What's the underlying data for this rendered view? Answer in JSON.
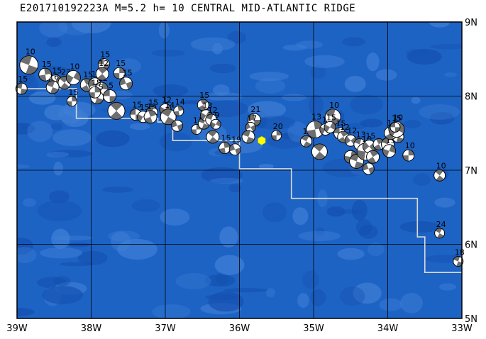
{
  "title": "E201710192223A M=5.2 h= 10 CENTRAL MID-ATLANTIC RIDGE",
  "map": {
    "lon_range": [
      -39,
      -33
    ],
    "lat_range": [
      5,
      9
    ],
    "x_ticks": [
      "39W",
      "38W",
      "37W",
      "36W",
      "35W",
      "34W",
      "33W"
    ],
    "y_ticks": [
      "5N",
      "6N",
      "7N",
      "8N",
      "9N"
    ],
    "colors": {
      "ocean": "#1d63c4",
      "ocean_light": "#3f7fd6",
      "ocean_dark": "#1450b0",
      "grid": "#000000",
      "fault": "#d9d9d9",
      "event_star": "#ffff00",
      "beach_dark": "#6e6e6e",
      "beach_light": "#ffffff"
    },
    "event": {
      "lon": -35.7,
      "lat": 7.4
    },
    "boundary": [
      [
        -39,
        8.1
      ],
      [
        -38.2,
        8.1
      ],
      [
        -38.2,
        7.7
      ],
      [
        -37.1,
        7.7
      ],
      [
        -37.1,
        7.65
      ],
      [
        -36.9,
        7.65
      ],
      [
        -36.9,
        7.4
      ],
      [
        -36.0,
        7.4
      ],
      [
        -36.0,
        7.02
      ],
      [
        -35.3,
        7.02
      ],
      [
        -35.3,
        6.62
      ],
      [
        -33.6,
        6.62
      ],
      [
        -33.6,
        6.1
      ],
      [
        -33.5,
        6.1
      ],
      [
        -33.5,
        5.62
      ],
      [
        -33.0,
        5.62
      ]
    ],
    "mechanisms": [
      {
        "lon": -38.84,
        "lat": 8.42,
        "r": 13,
        "rot": 20,
        "label": "10"
      },
      {
        "lon": -38.62,
        "lat": 8.29,
        "r": 9,
        "rot": 80,
        "label": "15"
      },
      {
        "lon": -38.48,
        "lat": 8.2,
        "r": 9,
        "rot": 120,
        "label": "15"
      },
      {
        "lon": -38.36,
        "lat": 8.18,
        "r": 9,
        "rot": 40,
        "label": "23"
      },
      {
        "lon": -38.52,
        "lat": 8.12,
        "r": 9,
        "rot": 200,
        "label": "16"
      },
      {
        "lon": -38.94,
        "lat": 8.1,
        "r": 8,
        "rot": 10,
        "label": "15"
      },
      {
        "lon": -38.24,
        "lat": 8.25,
        "r": 10,
        "rot": 300,
        "label": "10"
      },
      {
        "lon": -38.06,
        "lat": 8.15,
        "r": 9,
        "rot": 60,
        "label": "15"
      },
      {
        "lon": -37.95,
        "lat": 8.16,
        "r": 9,
        "rot": 150,
        "label": "15"
      },
      {
        "lon": -37.86,
        "lat": 8.1,
        "r": 9,
        "rot": 100,
        "label": "12"
      },
      {
        "lon": -37.83,
        "lat": 8.43,
        "r": 8,
        "rot": 0,
        "label": "15"
      },
      {
        "lon": -37.85,
        "lat": 8.3,
        "r": 9,
        "rot": 230,
        "label": "12"
      },
      {
        "lon": -37.62,
        "lat": 8.31,
        "r": 8,
        "rot": 90,
        "label": "15"
      },
      {
        "lon": -37.53,
        "lat": 8.17,
        "r": 9,
        "rot": 340,
        "label": "15"
      },
      {
        "lon": -37.92,
        "lat": 7.98,
        "r": 9,
        "rot": 20,
        "label": "15"
      },
      {
        "lon": -37.95,
        "lat": 8.05,
        "r": 8,
        "rot": 270,
        "label": "15"
      },
      {
        "lon": -37.75,
        "lat": 8.0,
        "r": 9,
        "rot": 180,
        "label": "5"
      },
      {
        "lon": -38.26,
        "lat": 7.93,
        "r": 7,
        "rot": 90,
        "label": "15"
      },
      {
        "lon": -37.66,
        "lat": 7.8,
        "r": 12,
        "rot": 45,
        "label": ""
      },
      {
        "lon": -37.4,
        "lat": 7.75,
        "r": 8,
        "rot": 0,
        "label": "15"
      },
      {
        "lon": -37.3,
        "lat": 7.72,
        "r": 8,
        "rot": 120,
        "label": "15"
      },
      {
        "lon": -37.18,
        "lat": 7.78,
        "r": 8,
        "rot": 200,
        "label": "15"
      },
      {
        "lon": -37.2,
        "lat": 7.72,
        "r": 9,
        "rot": 250,
        "label": "15"
      },
      {
        "lon": -37.0,
        "lat": 7.82,
        "r": 8,
        "rot": 300,
        "label": "12"
      },
      {
        "lon": -36.96,
        "lat": 7.72,
        "r": 11,
        "rot": 30,
        "label": "14"
      },
      {
        "lon": -36.82,
        "lat": 7.8,
        "r": 7,
        "rot": 80,
        "label": "14"
      },
      {
        "lon": -36.84,
        "lat": 7.6,
        "r": 8,
        "rot": 160,
        "label": ""
      },
      {
        "lon": -36.58,
        "lat": 7.55,
        "r": 7,
        "rot": 90,
        "label": "11"
      },
      {
        "lon": -36.48,
        "lat": 7.63,
        "r": 8,
        "rot": 20,
        "label": "15"
      },
      {
        "lon": -36.49,
        "lat": 7.88,
        "r": 8,
        "rot": 240,
        "label": "15"
      },
      {
        "lon": -36.45,
        "lat": 7.74,
        "r": 8,
        "rot": 120,
        "label": "13"
      },
      {
        "lon": -36.38,
        "lat": 7.68,
        "r": 8,
        "rot": 200,
        "label": "12"
      },
      {
        "lon": -36.32,
        "lat": 7.62,
        "r": 7,
        "rot": 300,
        "label": "9"
      },
      {
        "lon": -36.36,
        "lat": 7.45,
        "r": 9,
        "rot": 40,
        "label": ""
      },
      {
        "lon": -36.2,
        "lat": 7.3,
        "r": 8,
        "rot": 80,
        "label": "15"
      },
      {
        "lon": -36.06,
        "lat": 7.28,
        "r": 8,
        "rot": 340,
        "label": "19"
      },
      {
        "lon": -35.8,
        "lat": 7.68,
        "r": 9,
        "rot": 0,
        "label": "21"
      },
      {
        "lon": -35.85,
        "lat": 7.58,
        "r": 7,
        "rot": 150,
        "label": "17"
      },
      {
        "lon": -35.88,
        "lat": 7.45,
        "r": 9,
        "rot": 200,
        "label": ""
      },
      {
        "lon": -35.5,
        "lat": 7.47,
        "r": 7,
        "rot": 90,
        "label": "20"
      },
      {
        "lon": -35.1,
        "lat": 7.39,
        "r": 8,
        "rot": 30,
        "label": "11"
      },
      {
        "lon": -34.98,
        "lat": 7.55,
        "r": 12,
        "rot": 260,
        "label": "13"
      },
      {
        "lon": -34.84,
        "lat": 7.55,
        "r": 8,
        "rot": 120,
        "label": "15"
      },
      {
        "lon": -34.74,
        "lat": 7.72,
        "r": 11,
        "rot": 20,
        "label": "10"
      },
      {
        "lon": -34.78,
        "lat": 7.58,
        "r": 8,
        "rot": 300,
        "label": "15"
      },
      {
        "lon": -34.65,
        "lat": 7.5,
        "r": 8,
        "rot": 180,
        "label": "15"
      },
      {
        "lon": -34.6,
        "lat": 7.45,
        "r": 8,
        "rot": 60,
        "label": "12"
      },
      {
        "lon": -34.92,
        "lat": 7.25,
        "r": 11,
        "rot": 220,
        "label": ""
      },
      {
        "lon": -34.5,
        "lat": 7.4,
        "r": 8,
        "rot": 140,
        "label": "12"
      },
      {
        "lon": -34.5,
        "lat": 7.18,
        "r": 9,
        "rot": 280,
        "label": ""
      },
      {
        "lon": -34.42,
        "lat": 7.12,
        "r": 10,
        "rot": 20,
        "label": ""
      },
      {
        "lon": -34.38,
        "lat": 7.35,
        "r": 8,
        "rot": 200,
        "label": "13"
      },
      {
        "lon": -34.3,
        "lat": 7.25,
        "r": 12,
        "rot": 100,
        "label": "10"
      },
      {
        "lon": -34.25,
        "lat": 7.32,
        "r": 9,
        "rot": 320,
        "label": "15"
      },
      {
        "lon": -34.2,
        "lat": 7.18,
        "r": 9,
        "rot": 60,
        "label": ""
      },
      {
        "lon": -34.26,
        "lat": 7.02,
        "r": 8,
        "rot": 160,
        "label": ""
      },
      {
        "lon": -34.12,
        "lat": 7.35,
        "r": 8,
        "rot": 240,
        "label": ""
      },
      {
        "lon": -34.0,
        "lat": 7.35,
        "r": 9,
        "rot": 20,
        "label": "15"
      },
      {
        "lon": -33.98,
        "lat": 7.26,
        "r": 9,
        "rot": 110,
        "label": "15"
      },
      {
        "lon": -33.86,
        "lat": 7.45,
        "r": 8,
        "rot": 200,
        "label": "11"
      },
      {
        "lon": -33.96,
        "lat": 7.5,
        "r": 9,
        "rot": 60,
        "label": "11"
      },
      {
        "lon": -33.88,
        "lat": 7.55,
        "r": 11,
        "rot": 300,
        "label": "10"
      },
      {
        "lon": -33.9,
        "lat": 7.58,
        "r": 7,
        "rot": 0,
        "label": "15"
      },
      {
        "lon": -33.72,
        "lat": 7.2,
        "r": 8,
        "rot": 90,
        "label": "10"
      },
      {
        "lon": -33.3,
        "lat": 6.93,
        "r": 8,
        "rot": 40,
        "label": "10"
      },
      {
        "lon": -33.3,
        "lat": 6.15,
        "r": 7,
        "rot": 30,
        "label": "24"
      },
      {
        "lon": -33.05,
        "lat": 5.77,
        "r": 7,
        "rot": 20,
        "label": "18"
      }
    ]
  }
}
